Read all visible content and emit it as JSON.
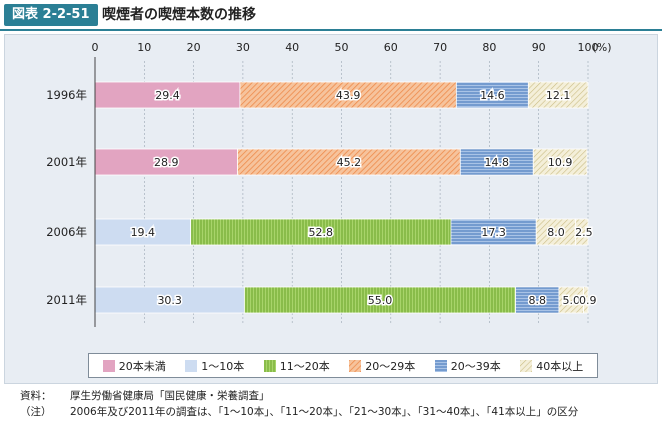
{
  "header": {
    "badge": "図表 2-2-51",
    "title": "喫煙者の喫煙本数の推移"
  },
  "chart_data": {
    "type": "bar",
    "orientation": "horizontal",
    "stacked": true,
    "unit_label": "(%)",
    "xlim": [
      0,
      100
    ],
    "x_ticks": [
      "0",
      "10",
      "20",
      "30",
      "40",
      "50",
      "60",
      "70",
      "80",
      "90",
      "100"
    ],
    "categories": [
      "1996年",
      "2001年",
      "2006年",
      "2011年"
    ],
    "series": [
      {
        "name": "20本未満",
        "values": [
          29.4,
          28.9,
          null,
          null
        ],
        "color": "#e2a4c1",
        "pattern": "solid"
      },
      {
        "name": "1～10本",
        "values": [
          null,
          null,
          19.4,
          30.3
        ],
        "color": "#cddcf1",
        "pattern": "solid"
      },
      {
        "name": "11～20本",
        "values": [
          null,
          null,
          52.8,
          55.0
        ],
        "color": "#8ec63f",
        "pattern": "vertical"
      },
      {
        "name": "20～29本",
        "values": [
          43.9,
          45.2,
          null,
          null
        ],
        "color": "#f0a36a",
        "pattern": "diagonal"
      },
      {
        "name": "20～39本",
        "values": [
          14.6,
          14.8,
          17.3,
          8.8
        ],
        "color": "#5a88c6",
        "pattern": "horizontal"
      },
      {
        "name": "40本以上",
        "values": [
          12.1,
          10.9,
          8.0,
          5.0
        ],
        "color": "#d8cc9a",
        "pattern": "diagonal-light"
      }
    ],
    "extra_segments": [
      {
        "category": "2006年",
        "value": 2.5,
        "label": "2.5"
      },
      {
        "category": "2011年",
        "value": 0.9,
        "label": "0.9"
      }
    ],
    "data_labels": [
      [
        "29.4",
        "43.9",
        "14.6",
        "12.1"
      ],
      [
        "28.9",
        "45.2",
        "14.8",
        "10.9"
      ],
      [
        "19.4",
        "52.8",
        "17.3",
        "8.0",
        "2.5"
      ],
      [
        "30.3",
        "55.0",
        "8.8",
        "5.0",
        "0.9"
      ]
    ],
    "legend": [
      "20本未満",
      "1～10本",
      "11～20本",
      "20～29本",
      "20～39本",
      "40本以上"
    ]
  },
  "notes": {
    "source_label": "資料：",
    "source_text": "厚生労働省健康局「国民健康・栄養調査」",
    "note_label": "（注）",
    "note_text": "2006年及び2011年の調査は、「1～10本」、「11～20本」、「21～30本」、「31～40本」、「41本以上」の区分"
  }
}
